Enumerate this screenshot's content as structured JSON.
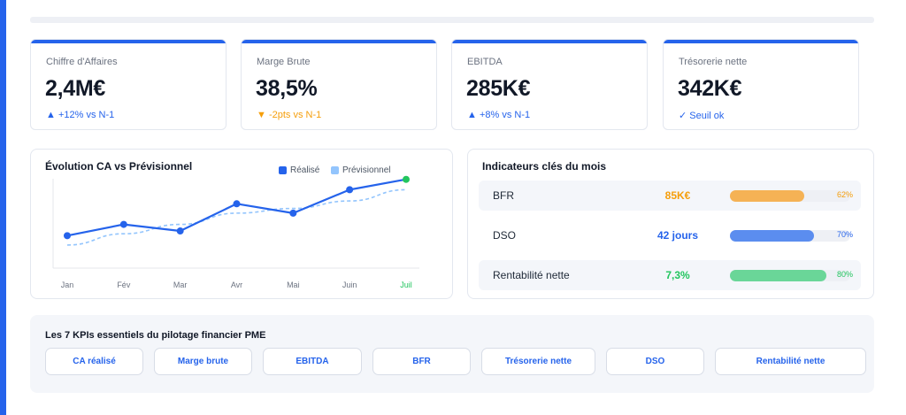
{
  "colors": {
    "accent": "#2563eb",
    "forecast": "#93c5fd",
    "warning": "#f59e0b",
    "success": "#22c55e"
  },
  "kpis": [
    {
      "label": "Chiffre d'Affaires",
      "value": "2,4M€",
      "trend": "▲ +12% vs N-1",
      "trend_type": "up"
    },
    {
      "label": "Marge Brute",
      "value": "38,5%",
      "trend": "▼ -2pts vs N-1",
      "trend_type": "down"
    },
    {
      "label": "EBITDA",
      "value": "285K€",
      "trend": "▲ +8% vs N-1",
      "trend_type": "up"
    },
    {
      "label": "Trésorerie nette",
      "value": "342K€",
      "trend": "✓ Seuil ok",
      "trend_type": "ok"
    }
  ],
  "chart": {
    "title": "Évolution CA vs Prévisionnel",
    "legend": [
      "Réalisé",
      "Prévisionnel"
    ]
  },
  "chart_data": {
    "type": "line",
    "title": "Évolution CA vs Prévisionnel",
    "categories": [
      "Jan",
      "Fév",
      "Mar",
      "Avr",
      "Mai",
      "Juin",
      "Juil"
    ],
    "highlight_category": "Juil",
    "series": [
      {
        "name": "Réalisé",
        "values": [
          28,
          40,
          33,
          62,
          52,
          77,
          88
        ],
        "style": "solid",
        "color": "#2563eb"
      },
      {
        "name": "Prévisionnel",
        "values": [
          18,
          30,
          40,
          52,
          57,
          65,
          77
        ],
        "style": "dashed",
        "color": "#93c5fd"
      }
    ],
    "ylim": [
      0,
      100
    ],
    "grid": false,
    "legend_position": "top-right"
  },
  "indicators": {
    "title": "Indicateurs clés du mois",
    "rows": [
      {
        "name": "BFR",
        "value": "85K€",
        "progress": 62,
        "percent_label": "62%",
        "color": "#f5b255",
        "value_color": "#f59e0b"
      },
      {
        "name": "DSO",
        "value": "42 jours",
        "progress": 70,
        "percent_label": "70%",
        "color": "#5b8def",
        "value_color": "#2563eb"
      },
      {
        "name": "Rentabilité nette",
        "value": "7,3%",
        "progress": 80,
        "percent_label": "80%",
        "color": "#6ad698",
        "value_color": "#22c55e"
      }
    ]
  },
  "bottom": {
    "title": "Les 7 KPIs essentiels du pilotage financier PME",
    "chips": [
      "CA réalisé",
      "Marge brute",
      "EBITDA",
      "BFR",
      "Trésorerie nette",
      "DSO",
      "Rentabilité nette"
    ]
  }
}
